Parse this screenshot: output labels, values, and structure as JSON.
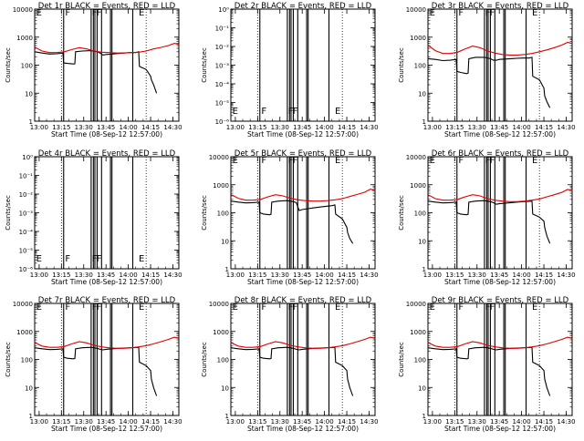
{
  "colors": {
    "events": "#000000",
    "lld": "#e00000",
    "background": "#ffffff",
    "axes": "#000000"
  },
  "x_ticks": [
    "13:00",
    "13:15",
    "13:30",
    "13:45",
    "14:00",
    "14:15",
    "14:30"
  ],
  "x_label": "Start Time (08-Sep-12 12:57:00)",
  "y_label": "Counts/sec",
  "chart_data": [
    {
      "id": "det1",
      "type": "line",
      "title": "Det 1r BLACK = Events, RED = LLD",
      "xlabel": "Start Time (08-Sep-12 12:57:00)",
      "ylabel": "Counts/sec",
      "x_unit": "minutes after 12:57:00",
      "xlim": [
        0,
        97
      ],
      "ylim": [
        1,
        10000
      ],
      "yscale": "log",
      "y_ticks": [
        "1",
        "10",
        "100",
        "1000",
        "10000"
      ],
      "flag_letters": [
        "E",
        "F",
        "F",
        "F",
        "E"
      ],
      "series": [
        {
          "name": "Events",
          "color": "#000000",
          "x": [
            0,
            5,
            10,
            15,
            19,
            19.5,
            22,
            26,
            27,
            27.5,
            32,
            38,
            42,
            44,
            46,
            48,
            52,
            56,
            60,
            64,
            68,
            70,
            70.5,
            75,
            78,
            78.5,
            80,
            82
          ],
          "y": [
            300,
            270,
            250,
            255,
            270,
            120,
            115,
            110,
            112,
            300,
            320,
            330,
            300,
            270,
            230,
            240,
            250,
            260,
            270,
            280,
            280,
            300,
            90,
            70,
            40,
            30,
            20,
            10
          ]
        },
        {
          "name": "LLD",
          "color": "#e00000",
          "x": [
            0,
            5,
            10,
            15,
            20,
            25,
            30,
            35,
            40,
            45,
            50,
            55,
            60,
            65,
            70,
            75,
            80,
            85,
            90,
            94,
            97
          ],
          "y": [
            440,
            320,
            280,
            280,
            300,
            360,
            420,
            380,
            320,
            290,
            280,
            270,
            270,
            280,
            290,
            320,
            380,
            430,
            500,
            600,
            550
          ]
        }
      ]
    },
    {
      "id": "det2",
      "type": "line",
      "title": "Det 2r BLACK = Events, RED = LLD",
      "xlabel": "Start Time (08-Sep-12 12:57:00)",
      "ylabel": "Counts/sec",
      "x_unit": "minutes after 12:57:00",
      "xlim": [
        0,
        97
      ],
      "ylim": [
        1e-06,
        1
      ],
      "yscale": "log",
      "y_ticks": [
        "10⁻⁶",
        "10⁻⁵",
        "10⁻⁴",
        "10⁻³",
        "10⁻²",
        "10⁻¹",
        "10⁰"
      ],
      "flag_letters": [
        "E",
        "F",
        "F",
        "F",
        "E"
      ],
      "series": []
    },
    {
      "id": "det3",
      "type": "line",
      "title": "Det 3r BLACK = Events, RED = LLD",
      "xlabel": "Start Time (08-Sep-12 12:57:00)",
      "ylabel": "Counts/sec",
      "x_unit": "minutes after 12:57:00",
      "xlim": [
        0,
        97
      ],
      "ylim": [
        1,
        10000
      ],
      "yscale": "log",
      "y_ticks": [
        "1",
        "10",
        "100",
        "1000",
        "10000"
      ],
      "flag_letters": [
        "E",
        "F",
        "F",
        "F",
        "E"
      ],
      "series": [
        {
          "name": "Events",
          "color": "#000000",
          "x": [
            0,
            5,
            10,
            15,
            19,
            19.5,
            22,
            26,
            27,
            27.5,
            32,
            38,
            42,
            44,
            46,
            48,
            52,
            56,
            60,
            64,
            68,
            70,
            70.5,
            75,
            78,
            78.5,
            80,
            82
          ],
          "y": [
            170,
            160,
            145,
            150,
            160,
            60,
            55,
            50,
            52,
            170,
            190,
            190,
            170,
            150,
            150,
            160,
            165,
            170,
            175,
            180,
            180,
            190,
            40,
            30,
            15,
            8,
            5,
            3
          ]
        },
        {
          "name": "LLD",
          "color": "#e00000",
          "x": [
            0,
            5,
            10,
            15,
            20,
            25,
            30,
            35,
            40,
            45,
            50,
            55,
            60,
            65,
            70,
            75,
            80,
            85,
            90,
            94,
            97
          ],
          "y": [
            520,
            330,
            260,
            260,
            290,
            380,
            480,
            420,
            320,
            270,
            240,
            230,
            230,
            240,
            260,
            300,
            350,
            420,
            520,
            650,
            600
          ]
        }
      ]
    },
    {
      "id": "det4",
      "type": "line",
      "title": "Det 4r BLACK = Events, RED = LLD",
      "xlabel": "Start Time (08-Sep-12 12:57:00)",
      "ylabel": "Counts/sec",
      "x_unit": "minutes after 12:57:00",
      "xlim": [
        0,
        97
      ],
      "ylim": [
        1e-06,
        1
      ],
      "yscale": "log",
      "y_ticks": [
        "10⁻⁶",
        "10⁻⁵",
        "10⁻⁴",
        "10⁻³",
        "10⁻²",
        "10⁻¹",
        "10⁰"
      ],
      "flag_letters": [
        "E",
        "F",
        "F",
        "F",
        "E"
      ],
      "series": []
    },
    {
      "id": "det5",
      "type": "line",
      "title": "Det 5r BLACK = Events, RED = LLD",
      "xlabel": "Start Time (08-Sep-12 12:57:00)",
      "ylabel": "Counts/sec",
      "x_unit": "minutes after 12:57:00",
      "xlim": [
        0,
        97
      ],
      "ylim": [
        1,
        10000
      ],
      "yscale": "log",
      "y_ticks": [
        "1",
        "10",
        "100",
        "1000",
        "10000"
      ],
      "flag_letters": [
        "E",
        "F",
        "F",
        "F",
        "E"
      ],
      "series": [
        {
          "name": "Events",
          "color": "#000000",
          "x": [
            0,
            5,
            10,
            15,
            19,
            19.5,
            22,
            26,
            27,
            27.5,
            32,
            38,
            42,
            44,
            46,
            48,
            52,
            56,
            60,
            64,
            68,
            70,
            70.5,
            75,
            78,
            78.5,
            80,
            82
          ],
          "y": [
            260,
            240,
            225,
            230,
            240,
            100,
            90,
            85,
            88,
            240,
            260,
            270,
            250,
            230,
            120,
            130,
            140,
            150,
            160,
            170,
            180,
            190,
            90,
            60,
            30,
            20,
            12,
            8
          ]
        },
        {
          "name": "LLD",
          "color": "#e00000",
          "x": [
            0,
            5,
            10,
            15,
            20,
            25,
            30,
            35,
            40,
            45,
            50,
            55,
            60,
            65,
            70,
            75,
            80,
            85,
            90,
            94,
            97
          ],
          "y": [
            450,
            330,
            280,
            280,
            300,
            370,
            440,
            400,
            330,
            290,
            270,
            260,
            260,
            270,
            290,
            320,
            380,
            450,
            540,
            700,
            600
          ]
        }
      ]
    },
    {
      "id": "det6",
      "type": "line",
      "title": "Det 6r BLACK = Events, RED = LLD",
      "xlabel": "Start Time (08-Sep-12 12:57:00)",
      "ylabel": "Counts/sec",
      "x_unit": "minutes after 12:57:00",
      "xlim": [
        0,
        97
      ],
      "ylim": [
        1,
        10000
      ],
      "yscale": "log",
      "y_ticks": [
        "1",
        "10",
        "100",
        "1000",
        "10000"
      ],
      "flag_letters": [
        "E",
        "F",
        "F",
        "F",
        "E"
      ],
      "series": [
        {
          "name": "Events",
          "color": "#000000",
          "x": [
            0,
            5,
            10,
            15,
            19,
            19.5,
            22,
            26,
            27,
            27.5,
            32,
            38,
            42,
            44,
            46,
            48,
            52,
            56,
            60,
            64,
            68,
            70,
            70.5,
            75,
            78,
            78.5,
            80,
            82
          ],
          "y": [
            260,
            240,
            225,
            230,
            240,
            100,
            90,
            85,
            88,
            240,
            260,
            270,
            250,
            230,
            200,
            210,
            220,
            230,
            240,
            250,
            255,
            260,
            90,
            70,
            50,
            30,
            15,
            8
          ]
        },
        {
          "name": "LLD",
          "color": "#e00000",
          "x": [
            0,
            5,
            10,
            15,
            20,
            25,
            30,
            35,
            40,
            45,
            50,
            55,
            60,
            65,
            70,
            75,
            80,
            85,
            90,
            94,
            97
          ],
          "y": [
            440,
            320,
            280,
            280,
            300,
            370,
            440,
            400,
            320,
            280,
            260,
            250,
            250,
            260,
            280,
            310,
            370,
            440,
            530,
            680,
            600
          ]
        }
      ]
    },
    {
      "id": "det7",
      "type": "line",
      "title": "Det 7r BLACK = Events, RED = LLD",
      "xlabel": "Start Time (08-Sep-12 12:57:00)",
      "ylabel": "Counts/sec",
      "x_unit": "minutes after 12:57:00",
      "xlim": [
        0,
        97
      ],
      "ylim": [
        1,
        10000
      ],
      "yscale": "log",
      "y_ticks": [
        "1",
        "10",
        "100",
        "1000",
        "10000"
      ],
      "flag_letters": [
        "E",
        "F",
        "F",
        "F",
        "E"
      ],
      "series": [
        {
          "name": "Events",
          "color": "#000000",
          "x": [
            0,
            5,
            10,
            15,
            19,
            19.5,
            22,
            26,
            27,
            27.5,
            32,
            38,
            42,
            44,
            46,
            48,
            52,
            56,
            60,
            64,
            68,
            70,
            70.5,
            75,
            78,
            78.5,
            80,
            82
          ],
          "y": [
            260,
            240,
            225,
            230,
            240,
            120,
            110,
            105,
            108,
            240,
            260,
            270,
            250,
            230,
            220,
            230,
            240,
            250,
            255,
            260,
            265,
            270,
            80,
            60,
            40,
            20,
            10,
            5
          ]
        },
        {
          "name": "LLD",
          "color": "#e00000",
          "x": [
            0,
            5,
            10,
            15,
            20,
            25,
            30,
            35,
            40,
            45,
            50,
            55,
            60,
            65,
            70,
            75,
            80,
            85,
            90,
            94,
            97
          ],
          "y": [
            400,
            300,
            270,
            270,
            290,
            360,
            430,
            390,
            320,
            280,
            260,
            250,
            250,
            260,
            280,
            310,
            360,
            430,
            520,
            620,
            560
          ]
        }
      ]
    },
    {
      "id": "det8",
      "type": "line",
      "title": "Det 8r BLACK = Events, RED = LLD",
      "xlabel": "Start Time (08-Sep-12 12:57:00)",
      "ylabel": "Counts/sec",
      "x_unit": "minutes after 12:57:00",
      "xlim": [
        0,
        97
      ],
      "ylim": [
        1,
        10000
      ],
      "yscale": "log",
      "y_ticks": [
        "1",
        "10",
        "100",
        "1000",
        "10000"
      ],
      "flag_letters": [
        "E",
        "F",
        "F",
        "F",
        "E"
      ],
      "series": [
        {
          "name": "Events",
          "color": "#000000",
          "x": [
            0,
            5,
            10,
            15,
            19,
            19.5,
            22,
            26,
            27,
            27.5,
            32,
            38,
            42,
            44,
            46,
            48,
            52,
            56,
            60,
            64,
            68,
            70,
            70.5,
            75,
            78,
            78.5,
            80,
            82
          ],
          "y": [
            260,
            240,
            225,
            230,
            240,
            120,
            110,
            105,
            108,
            240,
            260,
            270,
            250,
            230,
            220,
            230,
            240,
            250,
            255,
            260,
            265,
            270,
            80,
            60,
            40,
            20,
            10,
            5
          ]
        },
        {
          "name": "LLD",
          "color": "#e00000",
          "x": [
            0,
            5,
            10,
            15,
            20,
            25,
            30,
            35,
            40,
            45,
            50,
            55,
            60,
            65,
            70,
            75,
            80,
            85,
            90,
            94,
            97
          ],
          "y": [
            400,
            300,
            270,
            270,
            290,
            360,
            430,
            390,
            320,
            280,
            260,
            250,
            250,
            260,
            280,
            310,
            360,
            430,
            520,
            620,
            560
          ]
        }
      ]
    },
    {
      "id": "det9",
      "type": "line",
      "title": "Det 9r BLACK = Events, RED = LLD",
      "xlabel": "Start Time (08-Sep-12 12:57:00)",
      "ylabel": "Counts/sec",
      "x_unit": "minutes after 12:57:00",
      "xlim": [
        0,
        97
      ],
      "ylim": [
        1,
        10000
      ],
      "yscale": "log",
      "y_ticks": [
        "1",
        "10",
        "100",
        "1000",
        "10000"
      ],
      "flag_letters": [
        "E",
        "F",
        "F",
        "F",
        "E"
      ],
      "series": [
        {
          "name": "Events",
          "color": "#000000",
          "x": [
            0,
            5,
            10,
            15,
            19,
            19.5,
            22,
            26,
            27,
            27.5,
            32,
            38,
            42,
            44,
            46,
            48,
            52,
            56,
            60,
            64,
            68,
            70,
            70.5,
            75,
            78,
            78.5,
            80,
            82
          ],
          "y": [
            260,
            240,
            225,
            230,
            240,
            120,
            110,
            105,
            108,
            240,
            260,
            270,
            250,
            230,
            220,
            230,
            240,
            250,
            255,
            260,
            265,
            270,
            80,
            60,
            40,
            20,
            10,
            5
          ]
        },
        {
          "name": "LLD",
          "color": "#e00000",
          "x": [
            0,
            5,
            10,
            15,
            20,
            25,
            30,
            35,
            40,
            45,
            50,
            55,
            60,
            65,
            70,
            75,
            80,
            85,
            90,
            94,
            97
          ],
          "y": [
            400,
            300,
            270,
            270,
            290,
            360,
            430,
            390,
            320,
            280,
            260,
            250,
            250,
            260,
            280,
            310,
            360,
            430,
            520,
            620,
            560
          ]
        }
      ]
    }
  ]
}
